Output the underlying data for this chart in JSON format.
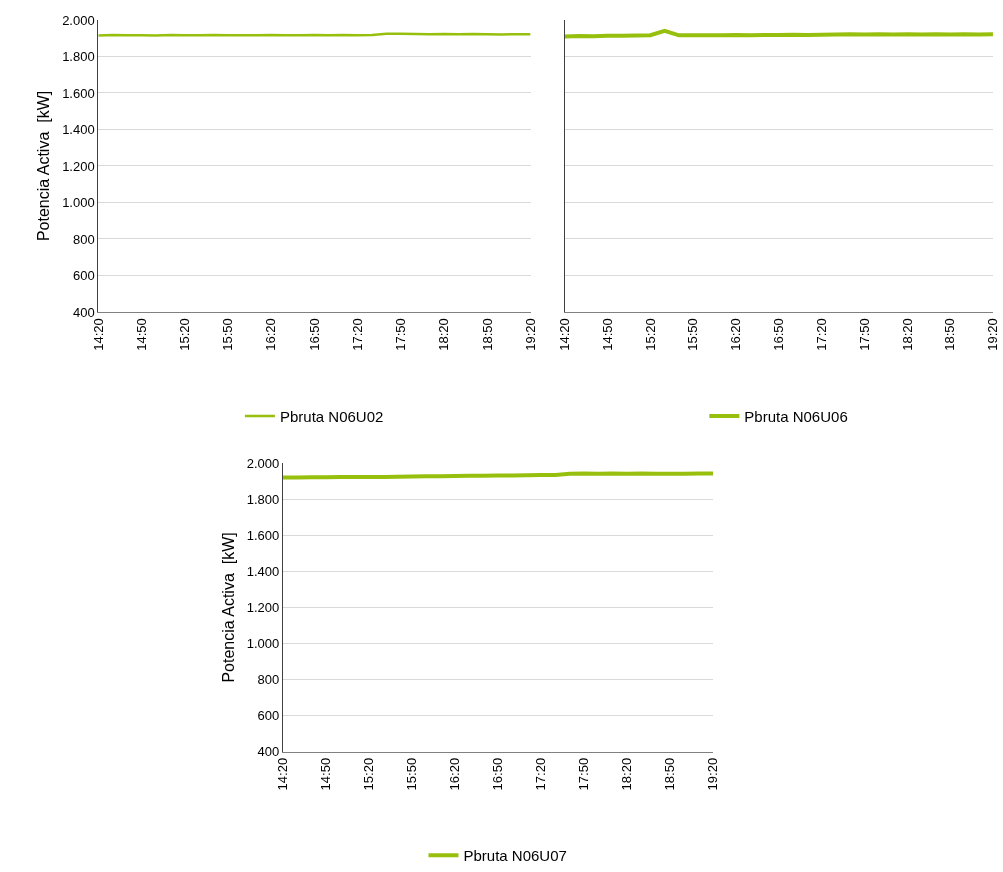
{
  "chart_data": [
    {
      "type": "line",
      "ylabel": "Potencia Activa  [kW]",
      "x": [
        14.333,
        14.5,
        14.667,
        14.833,
        15,
        15.167,
        15.333,
        15.5,
        15.667,
        15.833,
        16,
        16.167,
        16.333,
        16.5,
        16.667,
        16.833,
        17,
        17.167,
        17.333,
        17.5,
        17.667,
        17.833,
        18,
        18.167,
        18.333,
        18.5,
        18.667,
        18.833,
        19,
        19.167,
        19.333
      ],
      "xlim": [
        14.333,
        19.333
      ],
      "xticks": [
        {
          "value": 14.333,
          "label": "14:20"
        },
        {
          "value": 14.833,
          "label": "14:50"
        },
        {
          "value": 15.333,
          "label": "15:20"
        },
        {
          "value": 15.833,
          "label": "15:50"
        },
        {
          "value": 16.333,
          "label": "16:20"
        },
        {
          "value": 16.833,
          "label": "16:50"
        },
        {
          "value": 17.333,
          "label": "17:20"
        },
        {
          "value": 17.833,
          "label": "17:50"
        },
        {
          "value": 18.333,
          "label": "18:20"
        },
        {
          "value": 18.833,
          "label": "18:50"
        },
        {
          "value": 19.333,
          "label": "19:20"
        }
      ],
      "ylim": [
        400,
        2000
      ],
      "yticks": [
        {
          "value": 400,
          "label": "400"
        },
        {
          "value": 600,
          "label": "600"
        },
        {
          "value": 800,
          "label": "800"
        },
        {
          "value": 1000,
          "label": "1.000"
        },
        {
          "value": 1200,
          "label": "1.200"
        },
        {
          "value": 1400,
          "label": "1.400"
        },
        {
          "value": 1600,
          "label": "1.600"
        },
        {
          "value": 1800,
          "label": "1.800"
        },
        {
          "value": 2000,
          "label": "2.000"
        }
      ],
      "grid": "y",
      "legend": "bottom",
      "marker": "none",
      "line_style": "solid",
      "series": [
        {
          "name": "Pbruta N06U02",
          "color": "#97bf0d",
          "values": [
            1915,
            1918,
            1916,
            1917,
            1915,
            1918,
            1917,
            1916,
            1918,
            1917,
            1916,
            1917,
            1918,
            1916,
            1917,
            1918,
            1917,
            1918,
            1917,
            1918,
            1925,
            1924,
            1923,
            1922,
            1923,
            1922,
            1923,
            1922,
            1921,
            1922,
            1922
          ]
        }
      ]
    },
    {
      "type": "line",
      "x": [
        14.333,
        14.5,
        14.667,
        14.833,
        15,
        15.167,
        15.333,
        15.5,
        15.667,
        15.833,
        16,
        16.167,
        16.333,
        16.5,
        16.667,
        16.833,
        17,
        17.167,
        17.333,
        17.5,
        17.667,
        17.833,
        18,
        18.167,
        18.333,
        18.5,
        18.667,
        18.833,
        19,
        19.167,
        19.333
      ],
      "xlim": [
        14.333,
        19.333
      ],
      "xticks": [
        {
          "value": 14.333,
          "label": "14:20"
        },
        {
          "value": 14.833,
          "label": "14:50"
        },
        {
          "value": 15.333,
          "label": "15:20"
        },
        {
          "value": 15.833,
          "label": "15:50"
        },
        {
          "value": 16.333,
          "label": "16:20"
        },
        {
          "value": 16.833,
          "label": "16:50"
        },
        {
          "value": 17.333,
          "label": "17:20"
        },
        {
          "value": 17.833,
          "label": "17:50"
        },
        {
          "value": 18.333,
          "label": "18:20"
        },
        {
          "value": 18.833,
          "label": "18:50"
        },
        {
          "value": 19.333,
          "label": "19:20"
        }
      ],
      "ylim": [
        400,
        2000
      ],
      "yticks": [
        {
          "value": 400,
          "label": null
        },
        {
          "value": 600,
          "label": null
        },
        {
          "value": 800,
          "label": null
        },
        {
          "value": 1000,
          "label": null
        },
        {
          "value": 1200,
          "label": null
        },
        {
          "value": 1400,
          "label": null
        },
        {
          "value": 1600,
          "label": null
        },
        {
          "value": 1800,
          "label": null
        },
        {
          "value": 2000,
          "label": null
        }
      ],
      "grid": "y",
      "legend": "bottom",
      "marker": "none",
      "line_style": "solid",
      "tick_labels": "x",
      "series": [
        {
          "name": "Pbruta N06U06",
          "color": "#97bf0d",
          "values": [
            1910,
            1912,
            1911,
            1913,
            1914,
            1915,
            1917,
            1940,
            1916,
            1917,
            1916,
            1917,
            1918,
            1917,
            1918,
            1918,
            1919,
            1918,
            1919,
            1920,
            1922,
            1921,
            1922,
            1921,
            1922,
            1921,
            1922,
            1921,
            1922,
            1921,
            1922
          ]
        }
      ]
    },
    {
      "type": "line",
      "ylabel": "Potencia Activa  [kW]",
      "x": [
        14.333,
        14.5,
        14.667,
        14.833,
        15,
        15.167,
        15.333,
        15.5,
        15.667,
        15.833,
        16,
        16.167,
        16.333,
        16.5,
        16.667,
        16.833,
        17,
        17.167,
        17.333,
        17.5,
        17.667,
        17.833,
        18,
        18.167,
        18.333,
        18.5,
        18.667,
        18.833,
        19,
        19.167,
        19.333
      ],
      "xlim": [
        14.333,
        19.333
      ],
      "xticks": [
        {
          "value": 14.333,
          "label": "14:20"
        },
        {
          "value": 14.833,
          "label": "14:50"
        },
        {
          "value": 15.333,
          "label": "15:20"
        },
        {
          "value": 15.833,
          "label": "15:50"
        },
        {
          "value": 16.333,
          "label": "16:20"
        },
        {
          "value": 16.833,
          "label": "16:50"
        },
        {
          "value": 17.333,
          "label": "17:20"
        },
        {
          "value": 17.833,
          "label": "17:50"
        },
        {
          "value": 18.333,
          "label": "18:20"
        },
        {
          "value": 18.833,
          "label": "18:50"
        },
        {
          "value": 19.333,
          "label": "19:20"
        }
      ],
      "ylim": [
        400,
        2000
      ],
      "yticks": [
        {
          "value": 400,
          "label": "400"
        },
        {
          "value": 600,
          "label": "600"
        },
        {
          "value": 800,
          "label": "800"
        },
        {
          "value": 1000,
          "label": "1.000"
        },
        {
          "value": 1200,
          "label": "1.200"
        },
        {
          "value": 1400,
          "label": "1.400"
        },
        {
          "value": 1600,
          "label": "1.600"
        },
        {
          "value": 1800,
          "label": "1.800"
        },
        {
          "value": 2000,
          "label": "2.000"
        }
      ],
      "grid": "y",
      "legend": "bottom",
      "marker": "none",
      "line_style": "solid",
      "series": [
        {
          "name": "Pbruta N06U07",
          "color": "#97bf0d",
          "values": [
            1920,
            1921,
            1922,
            1922,
            1923,
            1923,
            1924,
            1924,
            1925,
            1926,
            1927,
            1928,
            1929,
            1930,
            1930,
            1931,
            1932,
            1933,
            1934,
            1935,
            1942,
            1943,
            1942,
            1943,
            1942,
            1943,
            1942,
            1941,
            1942,
            1943,
            1943
          ]
        }
      ]
    }
  ]
}
